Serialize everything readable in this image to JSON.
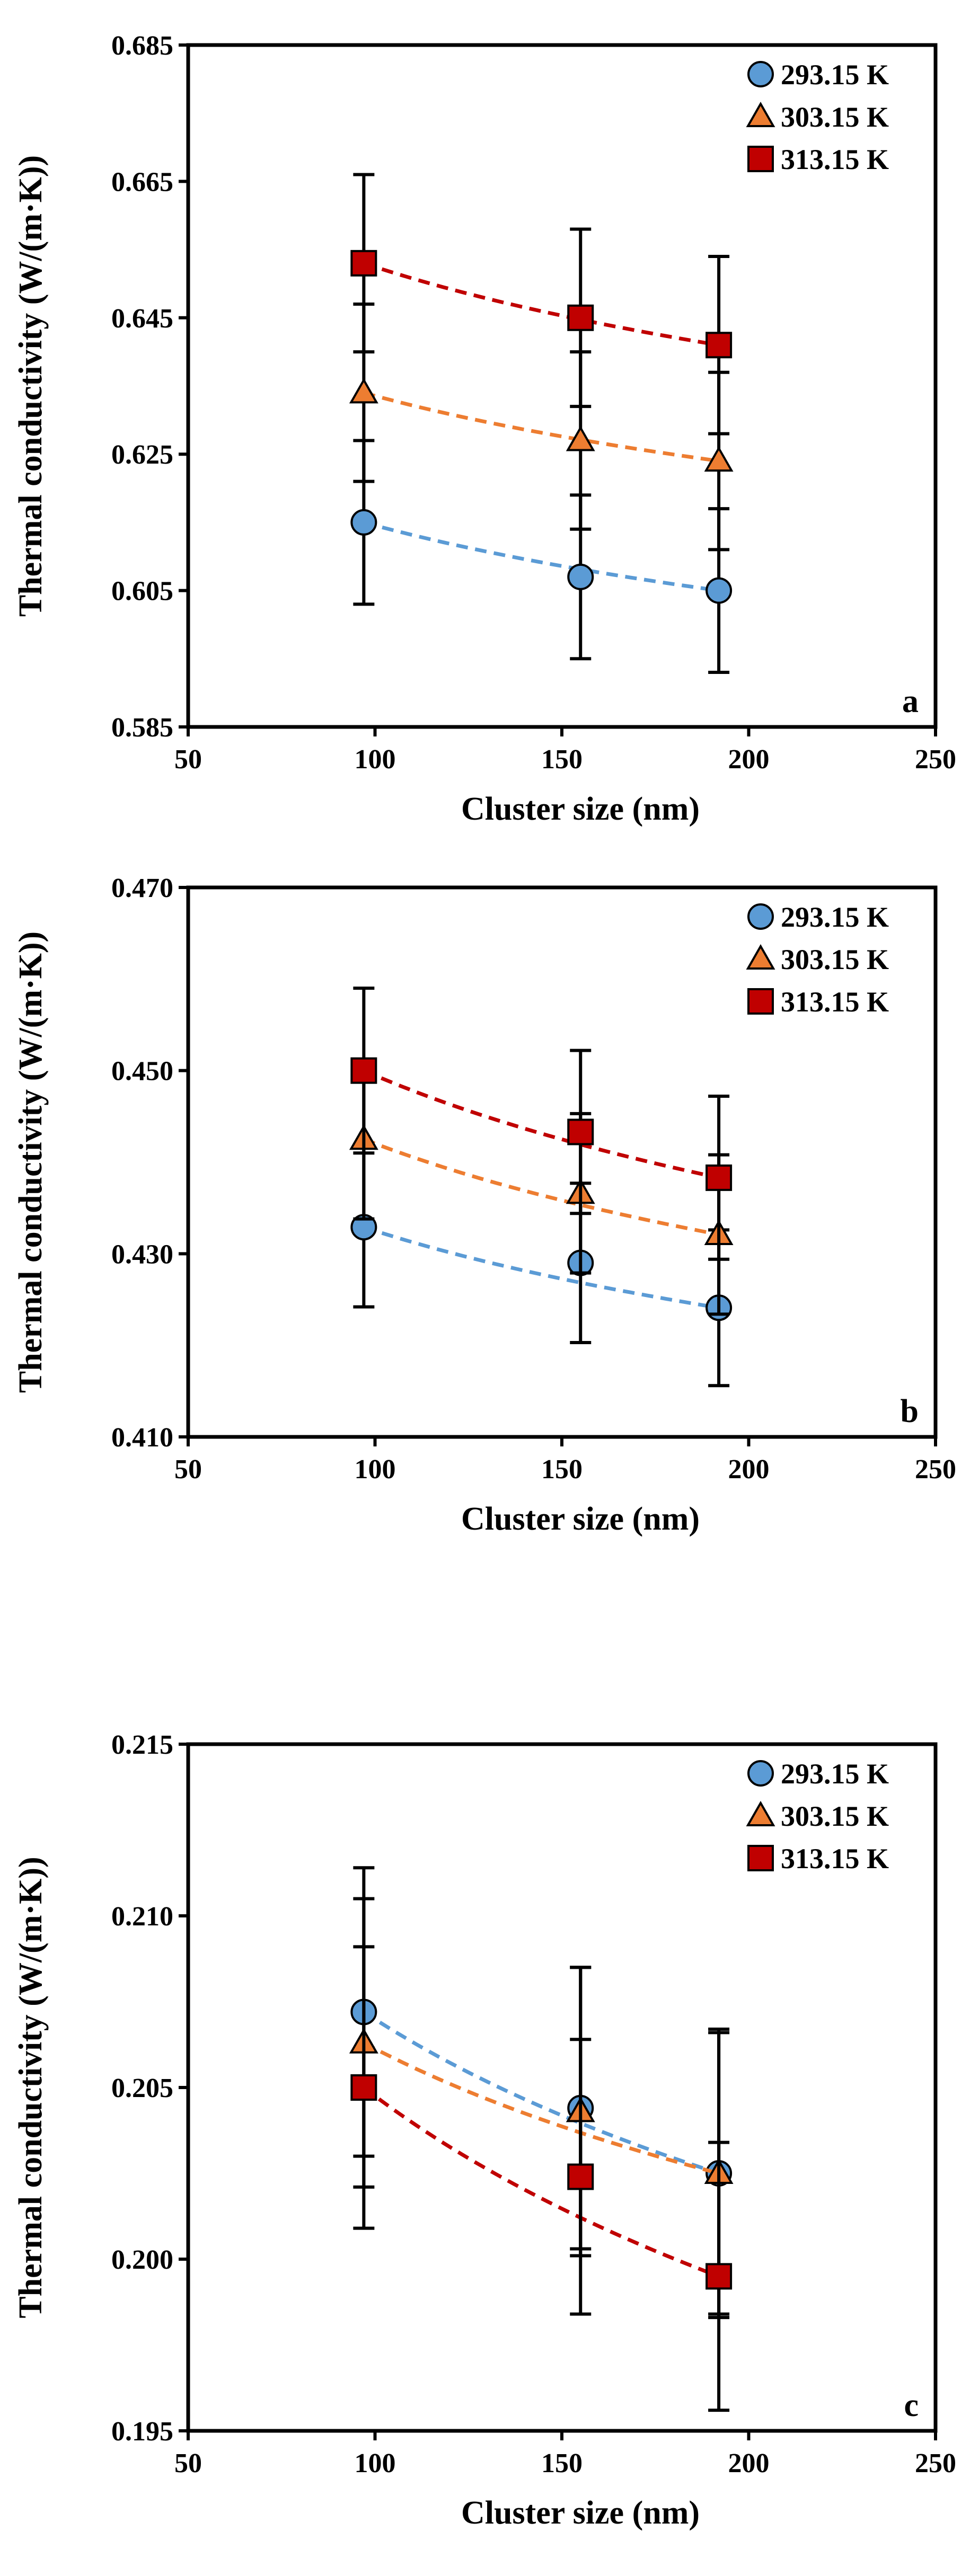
{
  "colors": {
    "blue": "#5B9BD5",
    "orange": "#ED7D31",
    "red": "#C00000",
    "axis": "#000000"
  },
  "chart_data": [
    {
      "type": "scatter",
      "panel_label": "a",
      "xlabel": "Cluster size (nm)",
      "ylabel": "Thermal conductivity (W/(m·K))",
      "xlim": [
        50,
        250
      ],
      "ylim": [
        0.585,
        0.685
      ],
      "xticks": [
        "50",
        "100",
        "150",
        "200",
        "250"
      ],
      "yticks": [
        "0.585",
        "0.605",
        "0.625",
        "0.645",
        "0.665",
        "0.685"
      ],
      "legend_position": "top-right",
      "series": [
        {
          "name": "293.15 K",
          "marker": "circle",
          "color": "#5B9BD5",
          "x": [
            97,
            155,
            192
          ],
          "y": [
            0.615,
            0.607,
            0.605
          ],
          "err": [
            0.012,
            0.012,
            0.012
          ],
          "trend": "dashed"
        },
        {
          "name": "303.15 K",
          "marker": "triangle",
          "color": "#ED7D31",
          "x": [
            97,
            155,
            192
          ],
          "y": [
            0.634,
            0.627,
            0.624
          ],
          "err": [
            0.013,
            0.013,
            0.013
          ],
          "trend": "dashed"
        },
        {
          "name": "313.15 K",
          "marker": "square",
          "color": "#C00000",
          "x": [
            97,
            155,
            192
          ],
          "y": [
            0.653,
            0.645,
            0.641
          ],
          "err": [
            0.013,
            0.013,
            0.013
          ],
          "trend": "dashed"
        }
      ]
    },
    {
      "type": "scatter",
      "panel_label": "b",
      "xlabel": "Cluster size (nm)",
      "ylabel": "Thermal conductivity (W/(m·K))",
      "xlim": [
        50,
        250
      ],
      "ylim": [
        0.41,
        0.47
      ],
      "xticks": [
        "50",
        "100",
        "150",
        "200",
        "250"
      ],
      "yticks": [
        "0.410",
        "0.430",
        "0.450",
        "0.470"
      ],
      "legend_position": "top-right",
      "series": [
        {
          "name": "293.15 K",
          "marker": "circle",
          "color": "#5B9BD5",
          "x": [
            97,
            155,
            192
          ],
          "y": [
            0.4329,
            0.429,
            0.4241
          ],
          "err": [
            0.0087,
            0.0087,
            0.0085
          ],
          "trend": "dashed"
        },
        {
          "name": "303.15 K",
          "marker": "triangle",
          "color": "#ED7D31",
          "x": [
            97,
            155,
            192
          ],
          "y": [
            0.4425,
            0.4366,
            0.4321
          ],
          "err": [
            0.0087,
            0.0087,
            0.0087
          ],
          "trend": "dashed"
        },
        {
          "name": "313.15 K",
          "marker": "square",
          "color": "#C00000",
          "x": [
            97,
            155,
            192
          ],
          "y": [
            0.45,
            0.4433,
            0.4383
          ],
          "err": [
            0.009,
            0.0089,
            0.0089
          ],
          "trend": "dashed"
        }
      ]
    },
    {
      "type": "scatter",
      "panel_label": "c",
      "xlabel": "Cluster size (nm)",
      "ylabel": "Thermal conductivity (W/(m·K))",
      "xlim": [
        50,
        250
      ],
      "ylim": [
        0.195,
        0.215
      ],
      "xticks": [
        "50",
        "100",
        "150",
        "200",
        "250"
      ],
      "yticks": [
        "0.195",
        "0.200",
        "0.205",
        "0.210",
        "0.215"
      ],
      "legend_position": "top-right",
      "series": [
        {
          "name": "293.15 K",
          "marker": "circle",
          "color": "#5B9BD5",
          "x": [
            97,
            155,
            192
          ],
          "y": [
            0.2072,
            0.2044,
            0.2025
          ],
          "err": [
            0.0042,
            0.0041,
            0.0041
          ],
          "trend": "dashed"
        },
        {
          "name": "303.15 K",
          "marker": "triangle",
          "color": "#ED7D31",
          "x": [
            97,
            155,
            192
          ],
          "y": [
            0.2063,
            0.2043,
            0.2025
          ],
          "err": [
            0.0042,
            0.0042,
            0.0042
          ],
          "trend": "dashed"
        },
        {
          "name": "313.15 K",
          "marker": "square",
          "color": "#C00000",
          "x": [
            97,
            155,
            192
          ],
          "y": [
            0.205,
            0.2024,
            0.1995
          ],
          "err": [
            0.0041,
            0.004,
            0.0039
          ],
          "trend": "dashed"
        }
      ]
    }
  ]
}
